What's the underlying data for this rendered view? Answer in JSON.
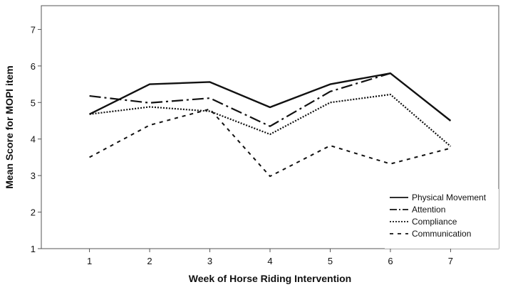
{
  "chart_data": {
    "type": "line",
    "xlabel": "Week of Horse Riding Intervention",
    "ylabel": "Mean Score for MOPI item",
    "x": [
      1,
      2,
      3,
      4,
      5,
      6,
      7
    ],
    "xlim": [
      0.2,
      7.8
    ],
    "ylim": [
      1,
      7.65
    ],
    "xticks": [
      1,
      2,
      3,
      4,
      5,
      6,
      7
    ],
    "yticks": [
      1,
      2,
      3,
      4,
      5,
      6,
      7
    ],
    "grid": false,
    "legend_position": "bottom-right",
    "series": [
      {
        "name": "Physical Movement",
        "style": "solid",
        "color": "#111111",
        "values": [
          4.68,
          5.5,
          5.56,
          4.87,
          5.5,
          5.8,
          4.5
        ]
      },
      {
        "name": "Attention",
        "style": "dash-dot",
        "color": "#111111",
        "values": [
          5.18,
          4.99,
          5.12,
          4.35,
          5.3,
          5.8,
          null
        ]
      },
      {
        "name": "Compliance",
        "style": "dotted",
        "color": "#111111",
        "values": [
          4.68,
          4.88,
          4.76,
          4.13,
          5.0,
          5.22,
          3.8
        ]
      },
      {
        "name": "Communication",
        "style": "dashed",
        "color": "#111111",
        "values": [
          3.5,
          4.38,
          4.82,
          2.98,
          3.82,
          3.32,
          3.75
        ]
      }
    ]
  }
}
